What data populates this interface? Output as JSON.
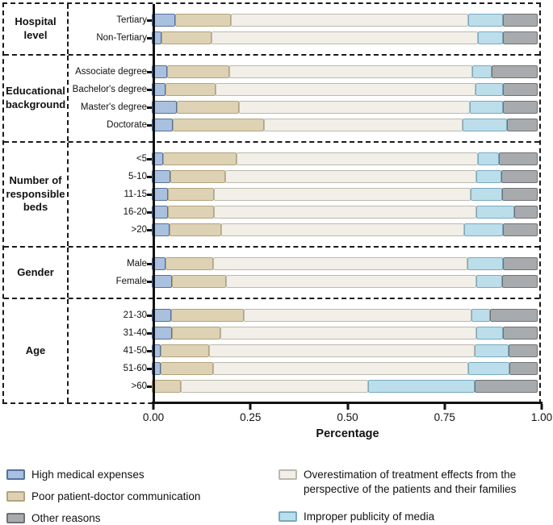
{
  "chart_data": {
    "type": "bar",
    "variant": "horizontal-100pct-stacked",
    "xlabel": "Percentage",
    "xlim": [
      0,
      1
    ],
    "grid": false,
    "legend_position": "bottom",
    "x_ticks": [
      {
        "value": 0,
        "label": "0.00"
      },
      {
        "value": 0.25,
        "label": "0.25"
      },
      {
        "value": 0.5,
        "label": "0.50"
      },
      {
        "value": 0.75,
        "label": "0.75"
      },
      {
        "value": 1,
        "label": "1.00"
      }
    ],
    "series_order": [
      "high",
      "poor",
      "overest",
      "media",
      "other"
    ],
    "series_names": {
      "high": "High medical expenses",
      "poor": "Poor patient-doctor communication",
      "overest": "Overestimation of treatment effects from the perspective of the patients and their families",
      "media": "Improper publicity of media",
      "other": "Other reasons"
    },
    "series_colors": {
      "high": {
        "fill": "#a9c0de",
        "edge": "#54719f"
      },
      "poor": {
        "fill": "#ded2b5",
        "edge": "#b2a37b"
      },
      "overest": {
        "fill": "#f2efe8",
        "edge": "#bcb9ae"
      },
      "media": {
        "fill": "#bcdeea",
        "edge": "#77a9c1"
      },
      "other": {
        "fill": "#a8abae",
        "edge": "#6f7174"
      }
    },
    "groups": [
      {
        "label": "Hospital level",
        "rows": [
          {
            "label": "Tertiary",
            "values": {
              "high": 0.06,
              "poor": 0.145,
              "overest": 0.615,
              "media": 0.09,
              "other": 0.09
            }
          },
          {
            "label": "Non-Tertiary",
            "values": {
              "high": 0.025,
              "poor": 0.13,
              "overest": 0.69,
              "media": 0.065,
              "other": 0.09
            }
          }
        ]
      },
      {
        "label": "Educational background",
        "rows": [
          {
            "label": "Associate degree",
            "values": {
              "high": 0.04,
              "poor": 0.16,
              "overest": 0.63,
              "media": 0.05,
              "other": 0.12
            }
          },
          {
            "label": "Bachelor's degree",
            "values": {
              "high": 0.035,
              "poor": 0.13,
              "overest": 0.675,
              "media": 0.07,
              "other": 0.09
            }
          },
          {
            "label": "Master's degree",
            "values": {
              "high": 0.065,
              "poor": 0.16,
              "overest": 0.6,
              "media": 0.085,
              "other": 0.09
            }
          },
          {
            "label": "Doctorate",
            "values": {
              "high": 0.055,
              "poor": 0.235,
              "overest": 0.515,
              "media": 0.115,
              "other": 0.08
            }
          }
        ]
      },
      {
        "label": "Number of responsible beds",
        "rows": [
          {
            "label": "<5",
            "values": {
              "high": 0.03,
              "poor": 0.19,
              "overest": 0.625,
              "media": 0.055,
              "other": 0.1
            }
          },
          {
            "label": "5-10",
            "values": {
              "high": 0.048,
              "poor": 0.142,
              "overest": 0.65,
              "media": 0.065,
              "other": 0.095
            }
          },
          {
            "label": "11-15",
            "values": {
              "high": 0.042,
              "poor": 0.12,
              "overest": 0.665,
              "media": 0.08,
              "other": 0.093
            }
          },
          {
            "label": "16-20",
            "values": {
              "high": 0.042,
              "poor": 0.12,
              "overest": 0.678,
              "media": 0.1,
              "other": 0.06
            }
          },
          {
            "label": ">20",
            "values": {
              "high": 0.045,
              "poor": 0.135,
              "overest": 0.63,
              "media": 0.1,
              "other": 0.09
            }
          }
        ]
      },
      {
        "label": "Gender",
        "rows": [
          {
            "label": "Male",
            "values": {
              "high": 0.036,
              "poor": 0.122,
              "overest": 0.66,
              "media": 0.092,
              "other": 0.09
            }
          },
          {
            "label": "Female",
            "values": {
              "high": 0.052,
              "poor": 0.14,
              "overest": 0.65,
              "media": 0.066,
              "other": 0.092
            }
          }
        ]
      },
      {
        "label": "Age",
        "rows": [
          {
            "label": "21-30",
            "values": {
              "high": 0.05,
              "poor": 0.188,
              "overest": 0.59,
              "media": 0.049,
              "other": 0.123
            }
          },
          {
            "label": "31-40",
            "values": {
              "high": 0.053,
              "poor": 0.125,
              "overest": 0.663,
              "media": 0.07,
              "other": 0.089
            }
          },
          {
            "label": "41-50",
            "values": {
              "high": 0.022,
              "poor": 0.127,
              "overest": 0.687,
              "media": 0.089,
              "other": 0.075
            }
          },
          {
            "label": "51-60",
            "values": {
              "high": 0.022,
              "poor": 0.136,
              "overest": 0.663,
              "media": 0.106,
              "other": 0.073
            }
          },
          {
            "label": ">60",
            "values": {
              "high": 0.0,
              "poor": 0.075,
              "overest": 0.485,
              "media": 0.277,
              "other": 0.163
            }
          }
        ]
      }
    ]
  },
  "legend": {
    "columns": [
      [
        {
          "series": "high",
          "label": "High medical expenses"
        },
        {
          "series": "poor",
          "label": "Poor patient-doctor communication"
        },
        {
          "series": "other",
          "label": "Other reasons"
        }
      ],
      [
        {
          "series": "overest",
          "label": "Overestimation of treatment effects from the perspective of the patients and their families"
        },
        {
          "series": "media",
          "label": "Improper publicity of media"
        }
      ]
    ]
  }
}
